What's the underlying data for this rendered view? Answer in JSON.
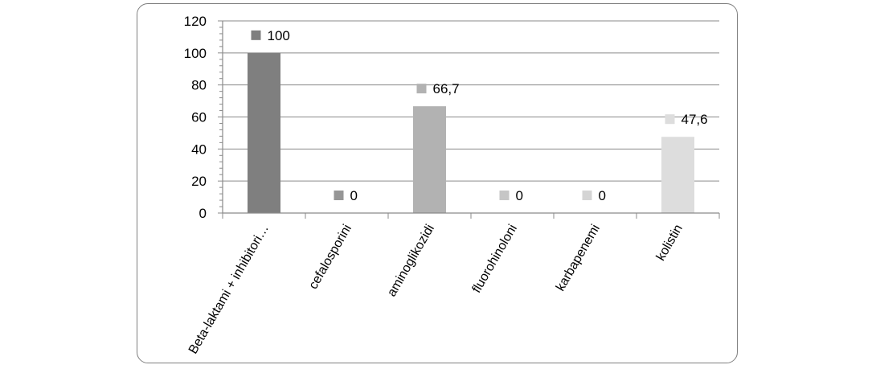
{
  "chart_data": {
    "type": "bar",
    "categories": [
      "Beta-laktami + inhibitori…",
      "cefalosporini",
      "aminoglikozidi",
      "fluorohinoloni",
      "karbapenemi",
      "kolistin"
    ],
    "values": [
      100,
      0,
      66.7,
      0,
      0,
      47.6
    ],
    "data_labels": [
      "100",
      "0",
      "66,7",
      "0",
      "0",
      "47,6"
    ],
    "colors": [
      "#7f7f7f",
      "#969696",
      "#b2b2b2",
      "#c6c6c6",
      "#d4d4d4",
      "#dddddd"
    ],
    "ylim": [
      0,
      120
    ],
    "yticks": [
      0,
      20,
      40,
      60,
      80,
      100,
      120
    ],
    "grid": true,
    "title": "",
    "xlabel": "",
    "ylabel": ""
  }
}
